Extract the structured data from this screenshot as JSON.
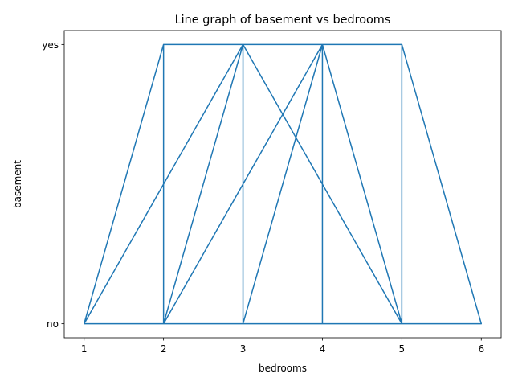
{
  "chart_data": {
    "type": "line",
    "title": "Line graph of basement vs bedrooms",
    "xlabel": "bedrooms",
    "ylabel": "basement",
    "x_ticks": [
      "1",
      "2",
      "3",
      "4",
      "5",
      "6"
    ],
    "y_categories": [
      "no",
      "yes"
    ],
    "xlim": [
      0.75,
      6.25
    ],
    "ylim": [
      -0.05,
      1.05
    ],
    "line_color": "#1f77b4",
    "grid": false,
    "legend": "none",
    "series": [
      {
        "x": [
          2,
          2,
          3,
          3,
          4,
          4,
          5,
          2,
          2,
          3,
          1,
          2,
          2,
          3,
          4,
          4,
          3,
          3,
          2,
          2,
          3,
          3,
          4,
          4,
          5,
          5,
          3,
          3,
          4,
          4,
          3,
          3,
          2,
          2,
          4,
          4,
          2,
          2,
          1,
          3,
          3,
          4,
          4,
          5,
          5,
          6,
          3,
          3,
          4,
          2,
          2,
          4,
          4,
          3,
          3
        ],
        "y": [
          0,
          1,
          1,
          0,
          0,
          1,
          1,
          1,
          0,
          0,
          0,
          1,
          0,
          1,
          1,
          0,
          0,
          1,
          0,
          1,
          1,
          0,
          0,
          1,
          1,
          0,
          1,
          0,
          1,
          0,
          0,
          1,
          1,
          0,
          0,
          1,
          1,
          0,
          0,
          1,
          0,
          0,
          1,
          0,
          1,
          0,
          0,
          1,
          1,
          0,
          1,
          1,
          0,
          0,
          1
        ]
      }
    ]
  }
}
